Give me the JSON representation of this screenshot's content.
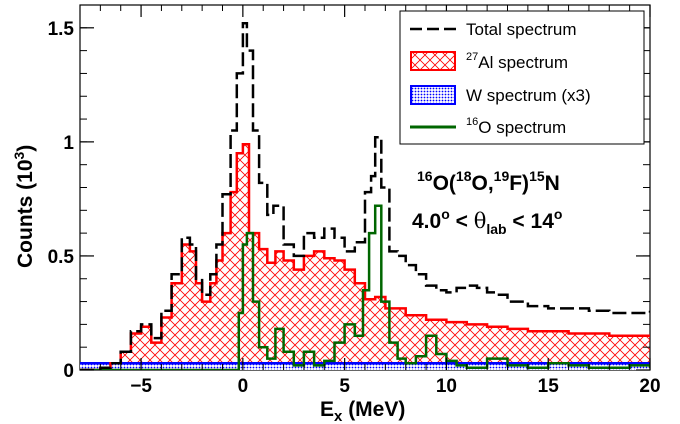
{
  "chart_data": {
    "type": "histogram-line",
    "xlabel_main": "E",
    "xlabel_sub": "x",
    "xlabel_unit": " (MeV)",
    "ylabel_main": "Counts (10",
    "ylabel_sup": "3",
    "ylabel_end": ")",
    "xlim": [
      -8,
      20
    ],
    "ylim": [
      0,
      1.6
    ],
    "x_ticks": [
      {
        "value": -5,
        "label": "−5"
      },
      {
        "value": 0,
        "label": "0"
      },
      {
        "value": 5,
        "label": "5"
      },
      {
        "value": 10,
        "label": "10"
      },
      {
        "value": 15,
        "label": "15"
      },
      {
        "value": 20,
        "label": "20"
      }
    ],
    "y_ticks": [
      {
        "value": 0,
        "label": "0"
      },
      {
        "value": 0.5,
        "label": "0.5"
      },
      {
        "value": 1.0,
        "label": "1"
      },
      {
        "value": 1.5,
        "label": "1.5"
      }
    ],
    "legend": {
      "position": "top-right",
      "entries": [
        {
          "key": "total",
          "pre": "",
          "sup": "",
          "text": "Total spectrum"
        },
        {
          "key": "al",
          "pre": "",
          "sup": "27",
          "text": "Al spectrum"
        },
        {
          "key": "w",
          "pre": "",
          "sup": "",
          "text": "W spectrum (x3)"
        },
        {
          "key": "o",
          "pre": "",
          "sup": "16",
          "text": "O spectrum"
        }
      ]
    },
    "annotation": {
      "line1": {
        "s1": "16",
        "t1": "O(",
        "s2": "18",
        "t2": "O,",
        "s3": "19",
        "t3": "F)",
        "s4": "15",
        "t4": "N"
      },
      "line2": {
        "t1": "4.0",
        "deg1": "o",
        "t2": " < ",
        "theta": "θ",
        "sub": "lab",
        "t3": " < 14",
        "deg2": "o"
      }
    },
    "colors": {
      "total": "#000000",
      "al": "#ff0000",
      "w": "#0000ff",
      "o": "#006600"
    },
    "series": [
      {
        "key": "total",
        "points": [
          [
            -8,
            0
          ],
          [
            -7,
            0.01
          ],
          [
            -6.5,
            0.03
          ],
          [
            -6,
            0.08
          ],
          [
            -5.5,
            0.17
          ],
          [
            -5,
            0.2
          ],
          [
            -4.5,
            0.14
          ],
          [
            -4,
            0.26
          ],
          [
            -3.5,
            0.42
          ],
          [
            -3,
            0.58
          ],
          [
            -2.6,
            0.55
          ],
          [
            -2.3,
            0.4
          ],
          [
            -2,
            0.33
          ],
          [
            -1.6,
            0.42
          ],
          [
            -1.3,
            0.55
          ],
          [
            -1,
            0.77
          ],
          [
            -0.6,
            1.05
          ],
          [
            -0.3,
            1.3
          ],
          [
            0,
            1.52
          ],
          [
            0.2,
            1.4
          ],
          [
            0.5,
            1.05
          ],
          [
            0.8,
            0.82
          ],
          [
            1.2,
            0.68
          ],
          [
            1.5,
            0.72
          ],
          [
            2,
            0.55
          ],
          [
            2.5,
            0.5
          ],
          [
            3,
            0.6
          ],
          [
            3.5,
            0.58
          ],
          [
            4,
            0.62
          ],
          [
            4.5,
            0.58
          ],
          [
            5,
            0.52
          ],
          [
            5.5,
            0.56
          ],
          [
            6,
            0.78
          ],
          [
            6.3,
            0.85
          ],
          [
            6.5,
            1.02
          ],
          [
            6.8,
            0.8
          ],
          [
            7.2,
            0.52
          ],
          [
            7.6,
            0.5
          ],
          [
            8,
            0.46
          ],
          [
            8.5,
            0.42
          ],
          [
            9,
            0.37
          ],
          [
            9.5,
            0.35
          ],
          [
            10,
            0.34
          ],
          [
            10.5,
            0.36
          ],
          [
            11,
            0.37
          ],
          [
            11.5,
            0.36
          ],
          [
            12,
            0.34
          ],
          [
            12.5,
            0.33
          ],
          [
            13,
            0.3
          ],
          [
            14,
            0.28
          ],
          [
            15,
            0.27
          ],
          [
            16,
            0.27
          ],
          [
            17,
            0.26
          ],
          [
            18,
            0.25
          ],
          [
            19,
            0.25
          ],
          [
            20,
            0.26
          ]
        ]
      },
      {
        "key": "al",
        "points": [
          [
            -8,
            0
          ],
          [
            -7,
            0.01
          ],
          [
            -6.5,
            0.03
          ],
          [
            -6,
            0.08
          ],
          [
            -5.5,
            0.16
          ],
          [
            -5,
            0.19
          ],
          [
            -4.5,
            0.12
          ],
          [
            -4,
            0.23
          ],
          [
            -3.5,
            0.38
          ],
          [
            -3,
            0.55
          ],
          [
            -2.6,
            0.52
          ],
          [
            -2.3,
            0.38
          ],
          [
            -2,
            0.3
          ],
          [
            -1.6,
            0.38
          ],
          [
            -1.3,
            0.48
          ],
          [
            -1,
            0.6
          ],
          [
            -0.6,
            0.78
          ],
          [
            -0.3,
            0.95
          ],
          [
            0,
            0.99
          ],
          [
            0.3,
            0.6
          ],
          [
            0.8,
            0.53
          ],
          [
            1.2,
            0.47
          ],
          [
            1.6,
            0.52
          ],
          [
            2,
            0.48
          ],
          [
            2.5,
            0.44
          ],
          [
            3,
            0.5
          ],
          [
            3.5,
            0.52
          ],
          [
            4,
            0.49
          ],
          [
            4.5,
            0.48
          ],
          [
            5,
            0.44
          ],
          [
            5.5,
            0.38
          ],
          [
            6,
            0.31
          ],
          [
            6.5,
            0.32
          ],
          [
            7,
            0.27
          ],
          [
            8,
            0.24
          ],
          [
            9,
            0.22
          ],
          [
            10,
            0.21
          ],
          [
            11,
            0.2
          ],
          [
            12,
            0.19
          ],
          [
            13,
            0.18
          ],
          [
            14,
            0.17
          ],
          [
            15,
            0.17
          ],
          [
            16,
            0.16
          ],
          [
            17,
            0.16
          ],
          [
            18,
            0.15
          ],
          [
            19,
            0.15
          ],
          [
            20,
            0.15
          ]
        ]
      },
      {
        "key": "w",
        "points": [
          [
            -8,
            0.03
          ],
          [
            20,
            0.03
          ]
        ]
      },
      {
        "key": "o",
        "points": [
          [
            -8,
            0
          ],
          [
            -0.5,
            0
          ],
          [
            -0.2,
            0.25
          ],
          [
            0,
            0.55
          ],
          [
            0.2,
            0.6
          ],
          [
            0.5,
            0.3
          ],
          [
            0.8,
            0.1
          ],
          [
            1.2,
            0.05
          ],
          [
            1.6,
            0.18
          ],
          [
            2,
            0.08
          ],
          [
            2.5,
            0.02
          ],
          [
            3,
            0.08
          ],
          [
            3.5,
            0.02
          ],
          [
            4,
            0.04
          ],
          [
            4.5,
            0.12
          ],
          [
            5,
            0.2
          ],
          [
            5.5,
            0.15
          ],
          [
            5.9,
            0.35
          ],
          [
            6.2,
            0.6
          ],
          [
            6.5,
            0.72
          ],
          [
            6.8,
            0.3
          ],
          [
            7.2,
            0.12
          ],
          [
            7.6,
            0.05
          ],
          [
            8,
            0.03
          ],
          [
            8.5,
            0.06
          ],
          [
            9,
            0.15
          ],
          [
            9.5,
            0.07
          ],
          [
            10,
            0.04
          ],
          [
            10.5,
            0.02
          ],
          [
            11,
            0.01
          ],
          [
            12,
            0.05
          ],
          [
            13,
            0.02
          ],
          [
            14,
            0.01
          ],
          [
            15,
            0.03
          ],
          [
            16,
            0.02
          ],
          [
            17,
            0.01
          ],
          [
            18,
            0.01
          ],
          [
            19,
            0.02
          ],
          [
            20,
            0.01
          ]
        ]
      }
    ]
  }
}
